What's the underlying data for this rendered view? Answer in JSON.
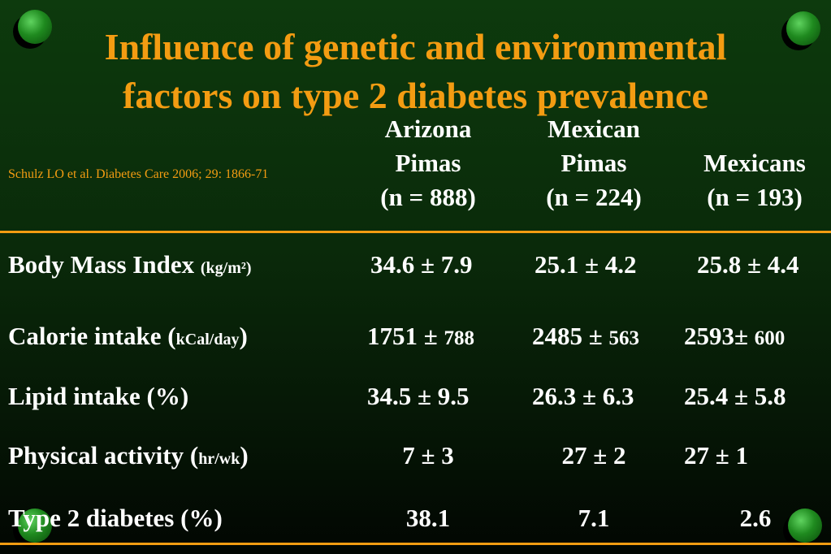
{
  "title": {
    "line1": "Influence of genetic and environmental",
    "line2": "factors on type 2 diabetes prevalence"
  },
  "citation": "Schulz LO et al. Diabetes Care 2006; 29: 1866-71",
  "columns": [
    {
      "line1": "Arizona",
      "line2": "Pimas",
      "line3": "(n = 888)"
    },
    {
      "line1": "Mexican",
      "line2": "Pimas",
      "line3": "(n = 224)"
    },
    {
      "line1": "",
      "line2": "Mexicans",
      "line3": "(n = 193)"
    }
  ],
  "rows": [
    {
      "label": "Body Mass Index ",
      "unit": "(kg/m²)",
      "unit_wrap": false,
      "values": [
        {
          "main": "34.6 ± 7.9",
          "small": ""
        },
        {
          "main": "25.1 ± 4.2",
          "small": ""
        },
        {
          "main": "25.8 ± 4.4",
          "small": ""
        }
      ]
    },
    {
      "label": "Calorie intake (",
      "unit": "kCal/day",
      "unit_wrap": true,
      "values": [
        {
          "main": "1751 ± ",
          "small": "788"
        },
        {
          "main": "2485 ± ",
          "small": "563"
        },
        {
          "main": "2593± ",
          "small": "600"
        }
      ]
    },
    {
      "label": "Lipid intake (%)",
      "unit": "",
      "unit_wrap": false,
      "values": [
        {
          "main": "34.5 ± 9.5",
          "small": ""
        },
        {
          "main": "26.3 ± 6.3",
          "small": ""
        },
        {
          "main": "25.4 ± 5.8",
          "small": ""
        }
      ]
    },
    {
      "label": "Physical activity (",
      "unit": "hr/wk",
      "unit_wrap": true,
      "values": [
        {
          "main": "7 ± 3",
          "small": ""
        },
        {
          "main": "27 ± 2",
          "small": ""
        },
        {
          "main": "27 ± 1",
          "small": ""
        }
      ]
    },
    {
      "label": "Type 2 diabetes (%)",
      "unit": "",
      "unit_wrap": false,
      "values": [
        {
          "main": "38.1",
          "small": ""
        },
        {
          "main": "7.1",
          "small": ""
        },
        {
          "main": "2.6",
          "small": ""
        }
      ]
    }
  ],
  "colors": {
    "title": "#f39c12",
    "rule": "#f39c12",
    "text": "#ffffff",
    "ball": "#1f8a1f"
  },
  "decorations": [
    "green-ball-icon"
  ]
}
